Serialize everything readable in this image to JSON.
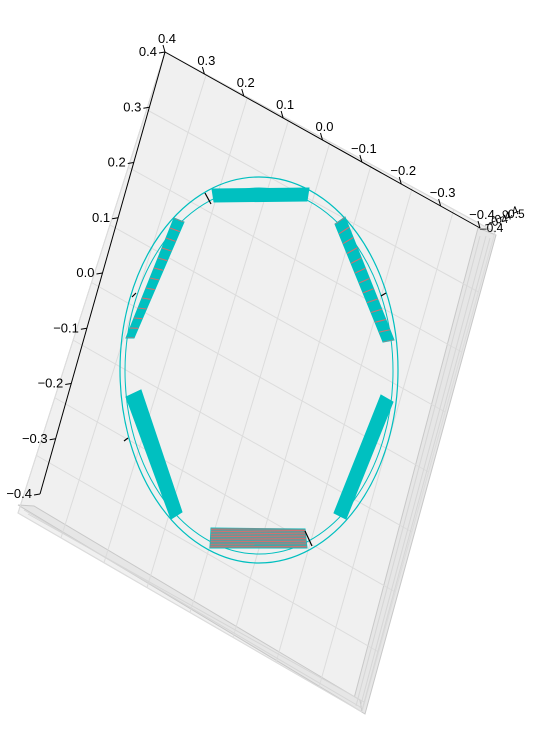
{
  "axes": {
    "left_ticks": [
      "0.4",
      "0.3",
      "0.2",
      "0.1",
      "0.0",
      "−0.1",
      "−0.2",
      "−0.3",
      "−0.4"
    ],
    "top_ticks": [
      "0.4",
      "0.3",
      "0.2",
      "0.1",
      "0.0",
      "−0.1",
      "−0.2",
      "−0.3",
      "−0.4"
    ],
    "corner_ticks": [
      "0.5"
    ]
  },
  "colors": {
    "pane": "#f0f0f0",
    "pane_edge": "#c8c8c8",
    "grid": "#dcdcdc",
    "axis": "#000000",
    "ring": "#00bfbf",
    "module_fill": "#00c0c0",
    "module_stripe": "#d07070"
  },
  "modules": [
    {
      "name": "top",
      "style": "solid"
    },
    {
      "name": "upper-right",
      "style": "striped"
    },
    {
      "name": "lower-right",
      "style": "solid"
    },
    {
      "name": "bottom",
      "style": "striped"
    },
    {
      "name": "lower-left",
      "style": "solid"
    },
    {
      "name": "upper-left",
      "style": "striped"
    }
  ]
}
